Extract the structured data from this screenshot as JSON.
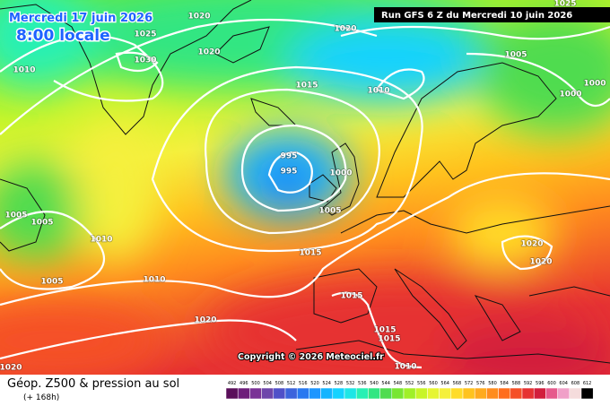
{
  "header": {
    "valid_date": "Mercredi 17 juin 2026",
    "local_time": "8:00 locale",
    "run": "Run GFS 6 Z du Mercredi 10 juin 2026"
  },
  "isobar_labels": [
    "1020",
    "1025",
    "1020",
    "1030",
    "1010",
    "1020",
    "1025",
    "1005",
    "1015",
    "1010",
    "1000",
    "1000",
    "995",
    "995",
    "1000",
    "1005",
    "1005",
    "1005",
    "1010",
    "1015",
    "1020",
    "1020",
    "1005",
    "1010",
    "1015",
    "1020",
    "1015",
    "1015",
    "1010",
    "1020"
  ],
  "copyright": "Copyright © 2026 Meteociel.fr",
  "footer": {
    "title": "Géop. Z500 & pression au sol",
    "lead": "(+ 168h)"
  },
  "legend": {
    "levels": [
      492,
      496,
      500,
      504,
      508,
      512,
      516,
      520,
      524,
      528,
      532,
      536,
      540,
      544,
      548,
      552,
      556,
      560,
      564,
      568,
      572,
      576,
      580,
      584,
      588,
      592,
      596,
      600,
      604,
      608,
      612
    ],
    "colors": [
      "#5a0f5a",
      "#6e1e7a",
      "#7a3296",
      "#6e46aa",
      "#5050c8",
      "#3c64dc",
      "#2878f0",
      "#1e96ff",
      "#14b4ff",
      "#14d2ff",
      "#1ee6e6",
      "#28f0b4",
      "#32e682",
      "#50dc50",
      "#78e632",
      "#a0f028",
      "#c8f528",
      "#e6f532",
      "#f5f03c",
      "#ffdc28",
      "#ffc31e",
      "#ffaa1e",
      "#ff8c1e",
      "#ff6e1e",
      "#f55028",
      "#e63232",
      "#d21e3c",
      "#e65a8c",
      "#f0a0c8",
      "#f5dcdc",
      "#000000"
    ]
  }
}
